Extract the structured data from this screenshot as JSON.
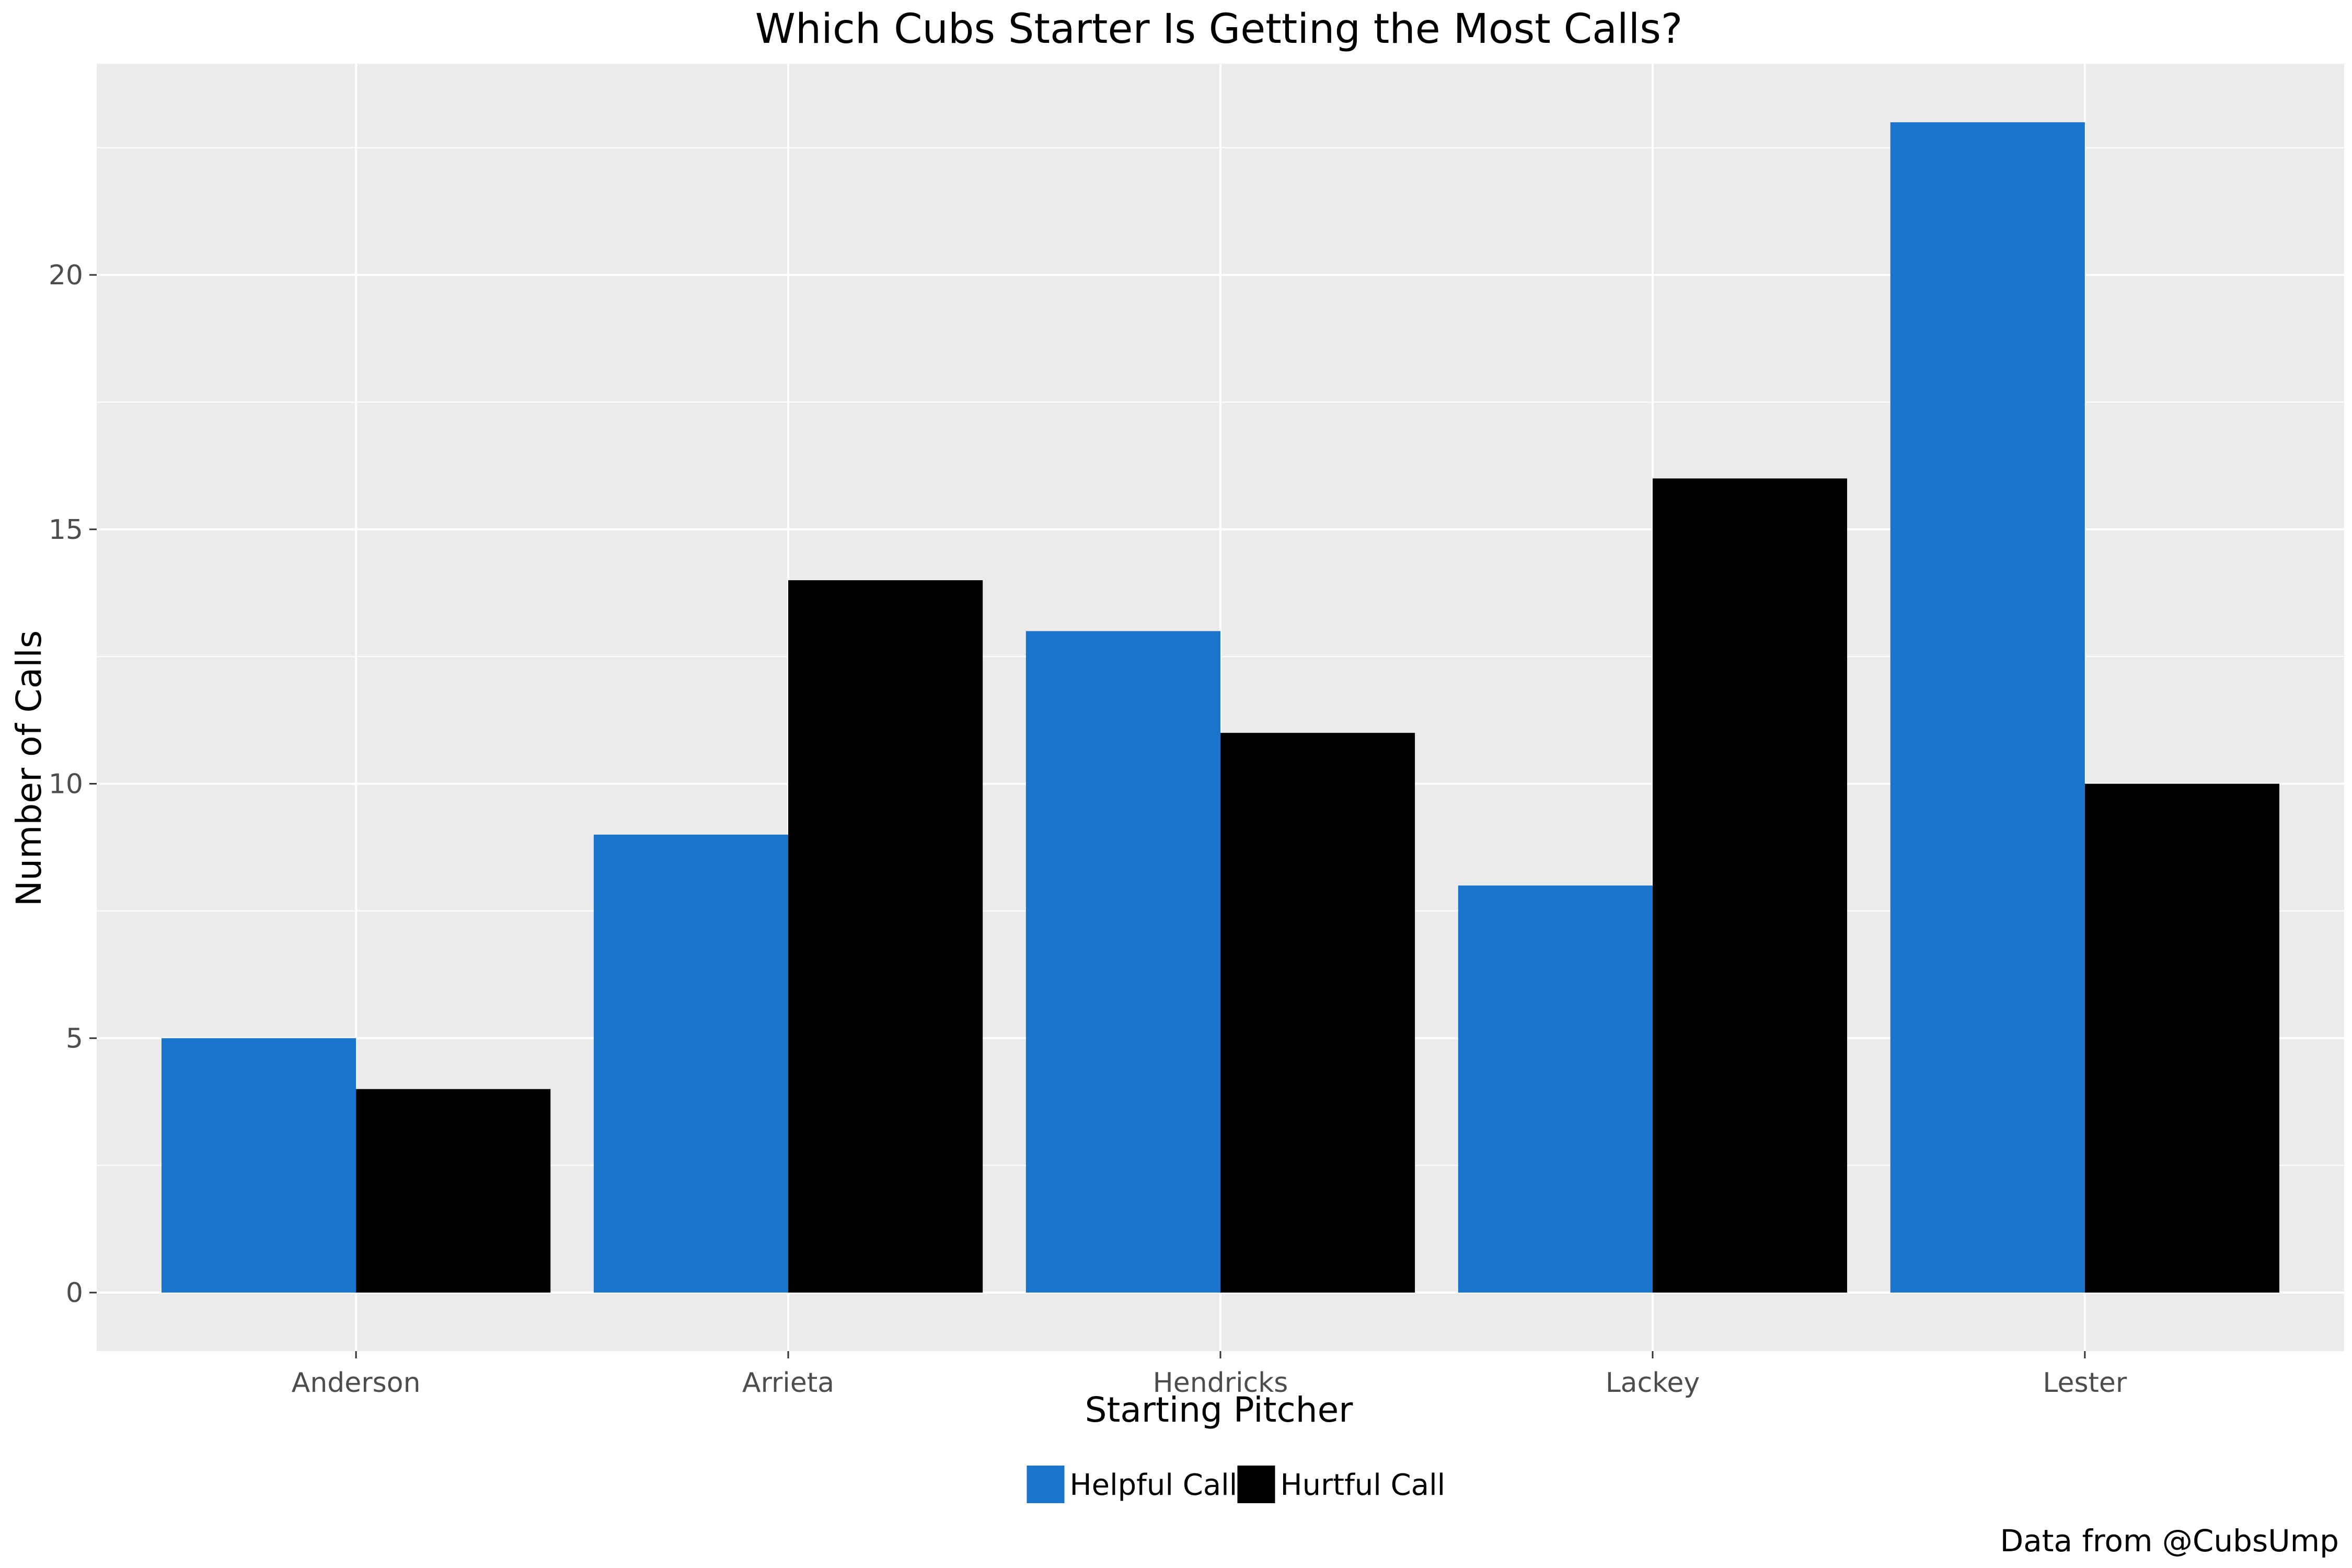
{
  "chart_data": {
    "type": "bar",
    "title": "Which Cubs Starter Is Getting the Most Calls?",
    "xlabel": "Starting Pitcher",
    "ylabel": "Number of Calls",
    "caption": "Data from @CubsUmp",
    "categories": [
      "Anderson",
      "Arrieta",
      "Hendricks",
      "Lackey",
      "Lester"
    ],
    "series": [
      {
        "name": "Helpful Call",
        "color": "#1a74cc",
        "values": [
          5,
          9,
          13,
          8,
          23
        ]
      },
      {
        "name": "Hurtful Call",
        "color": "#000000",
        "values": [
          4,
          14,
          11,
          16,
          10
        ]
      }
    ],
    "ylim": [
      -1.15,
      24.15
    ],
    "yticks": [
      "0",
      "5",
      "10",
      "15",
      "20"
    ],
    "grid": true,
    "legend_position": "bottom",
    "panel_background": "#ebebeb",
    "gridline_color": "#ffffff"
  }
}
